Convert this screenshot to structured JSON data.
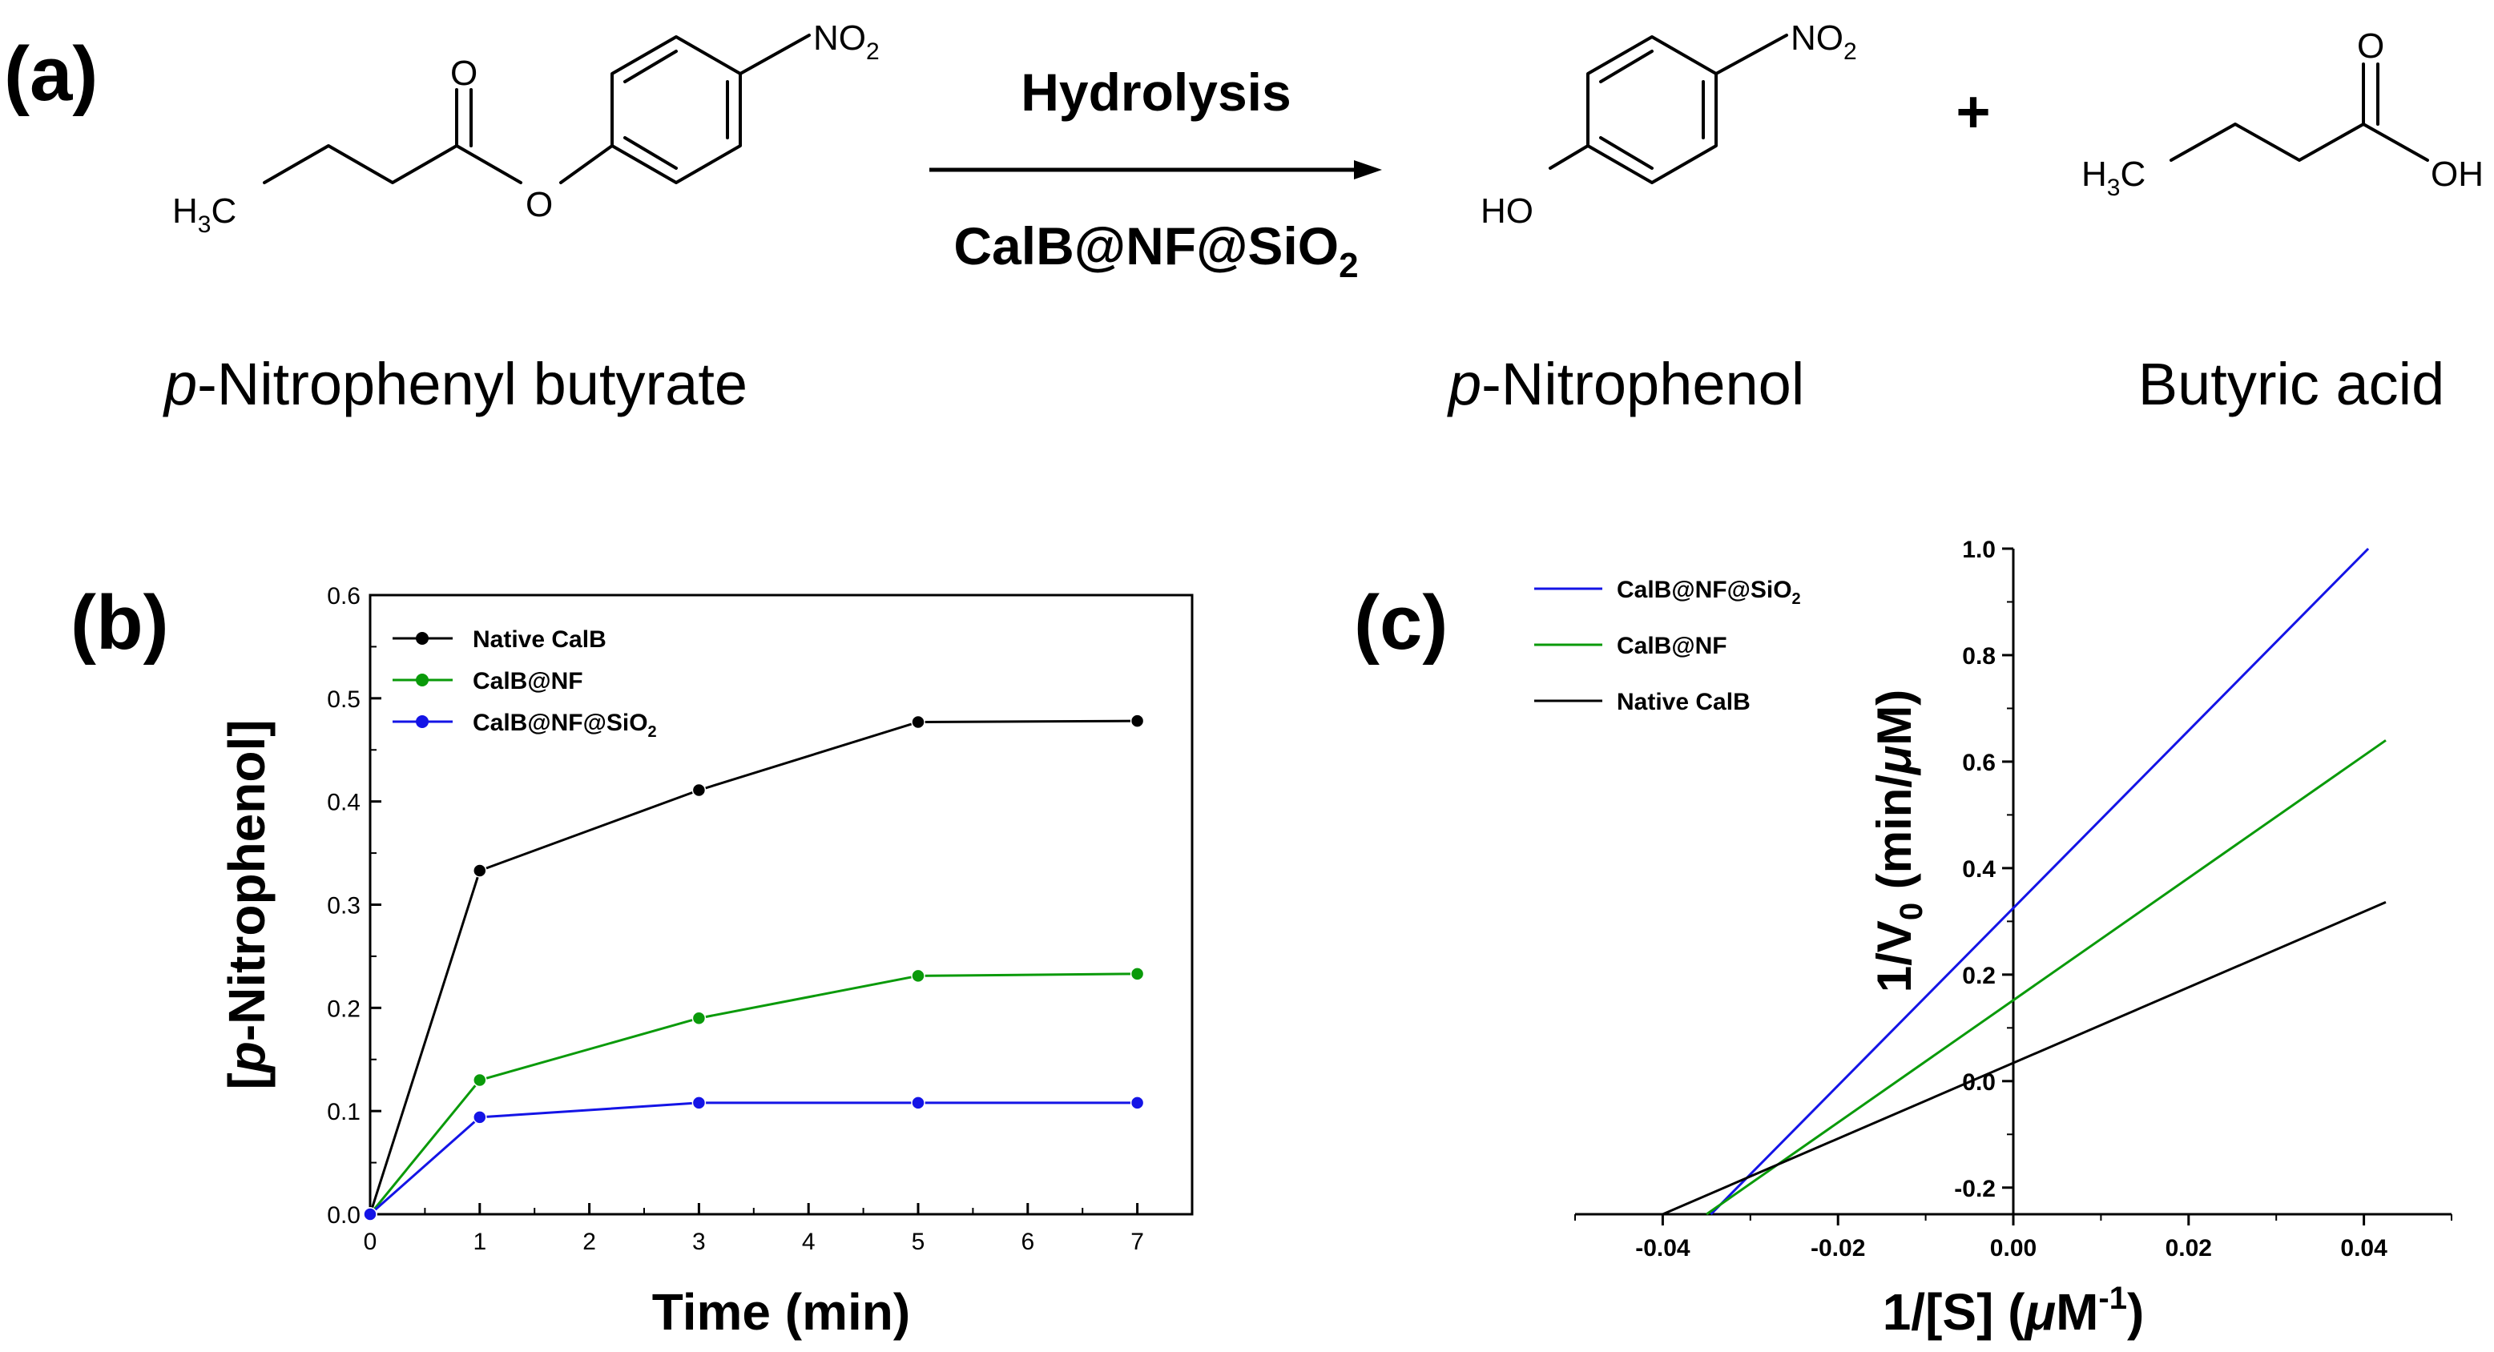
{
  "panels": {
    "a": {
      "label": "(a)",
      "reagent_label": "CalB@NF@SiO",
      "reagent_sub": "2",
      "condition": "Hydrolysis",
      "plus": "+",
      "reactant_prefix": "p",
      "reactant_rest": "-Nitrophenyl butyrate",
      "product1_prefix": "p",
      "product1_rest": "-Nitrophenol",
      "product2": "Butyric acid",
      "atoms": {
        "no2": "NO",
        "no2_sub": "2",
        "h3c": "H",
        "h3c_sub": "3",
        "h3c_c": "C",
        "o_ester_carbonyl": "O",
        "o_ester_link": "O",
        "ho": "HO",
        "oh": "OH",
        "o_acid_carbonyl": "O"
      }
    },
    "b": {
      "label": "(b)"
    },
    "c": {
      "label": "(c)"
    }
  },
  "chart_data": [
    {
      "type": "line",
      "panel": "b",
      "xlabel": "Time (min)",
      "ylabel_open": "[",
      "ylabel_italic": "p",
      "ylabel_rest": "-Nitrophenol]",
      "xlim": [
        0,
        7.5
      ],
      "ylim": [
        0,
        0.6
      ],
      "xticks": [
        "0",
        "1",
        "2",
        "3",
        "4",
        "5",
        "6",
        "7"
      ],
      "yticks": [
        "0.0",
        "0.1",
        "0.2",
        "0.3",
        "0.4",
        "0.5",
        "0.6"
      ],
      "x": [
        0,
        1,
        3,
        5,
        7
      ],
      "grid": false,
      "legend_position": "top-left",
      "series": [
        {
          "name": "Native CalB",
          "color": "#000000",
          "values": [
            0,
            0.333,
            0.411,
            0.477,
            0.478
          ]
        },
        {
          "name": "CalB@NF",
          "color": "#0a9a0a",
          "values": [
            0,
            0.13,
            0.19,
            0.231,
            0.233
          ]
        },
        {
          "name": "CalB@NF@SiO",
          "name_sub": "2",
          "color": "#1414e6",
          "values": [
            0,
            0.094,
            0.108,
            0.108,
            0.108
          ]
        }
      ]
    },
    {
      "type": "line",
      "panel": "c",
      "xlabel": "1/[S] (",
      "xlabel_mu": "μ",
      "xlabel_unit": "M",
      "xlabel_sup": "-1",
      "xlabel_close": ")",
      "ylabel": "1/V",
      "ylabel_sub": "0",
      "ylabel_rest": " (min/",
      "ylabel_mu": "μ",
      "ylabel_end": "M)",
      "xlim": [
        -0.05,
        0.05
      ],
      "ylim": [
        -0.25,
        1.0
      ],
      "xticks": [
        "-0.04",
        "-0.02",
        "0.00",
        "0.02",
        "0.04"
      ],
      "yticks": [
        "-0.2",
        "0.0",
        "0.2",
        "0.4",
        "0.6",
        "0.8",
        "1.0"
      ],
      "grid": false,
      "legend_position": "top-left",
      "series": [
        {
          "name": "CalB@NF@SiO",
          "name_sub": "2",
          "color": "#1414e6",
          "x": [
            -0.0345,
            0.0405
          ],
          "y": [
            -0.25,
            1.0
          ]
        },
        {
          "name": "CalB@NF",
          "color": "#0a9a0a",
          "x": [
            -0.035,
            0.0425
          ],
          "y": [
            -0.25,
            0.64
          ]
        },
        {
          "name": "Native CalB",
          "color": "#000000",
          "x": [
            -0.04,
            0.0425
          ],
          "y": [
            -0.25,
            0.336
          ]
        }
      ]
    }
  ]
}
